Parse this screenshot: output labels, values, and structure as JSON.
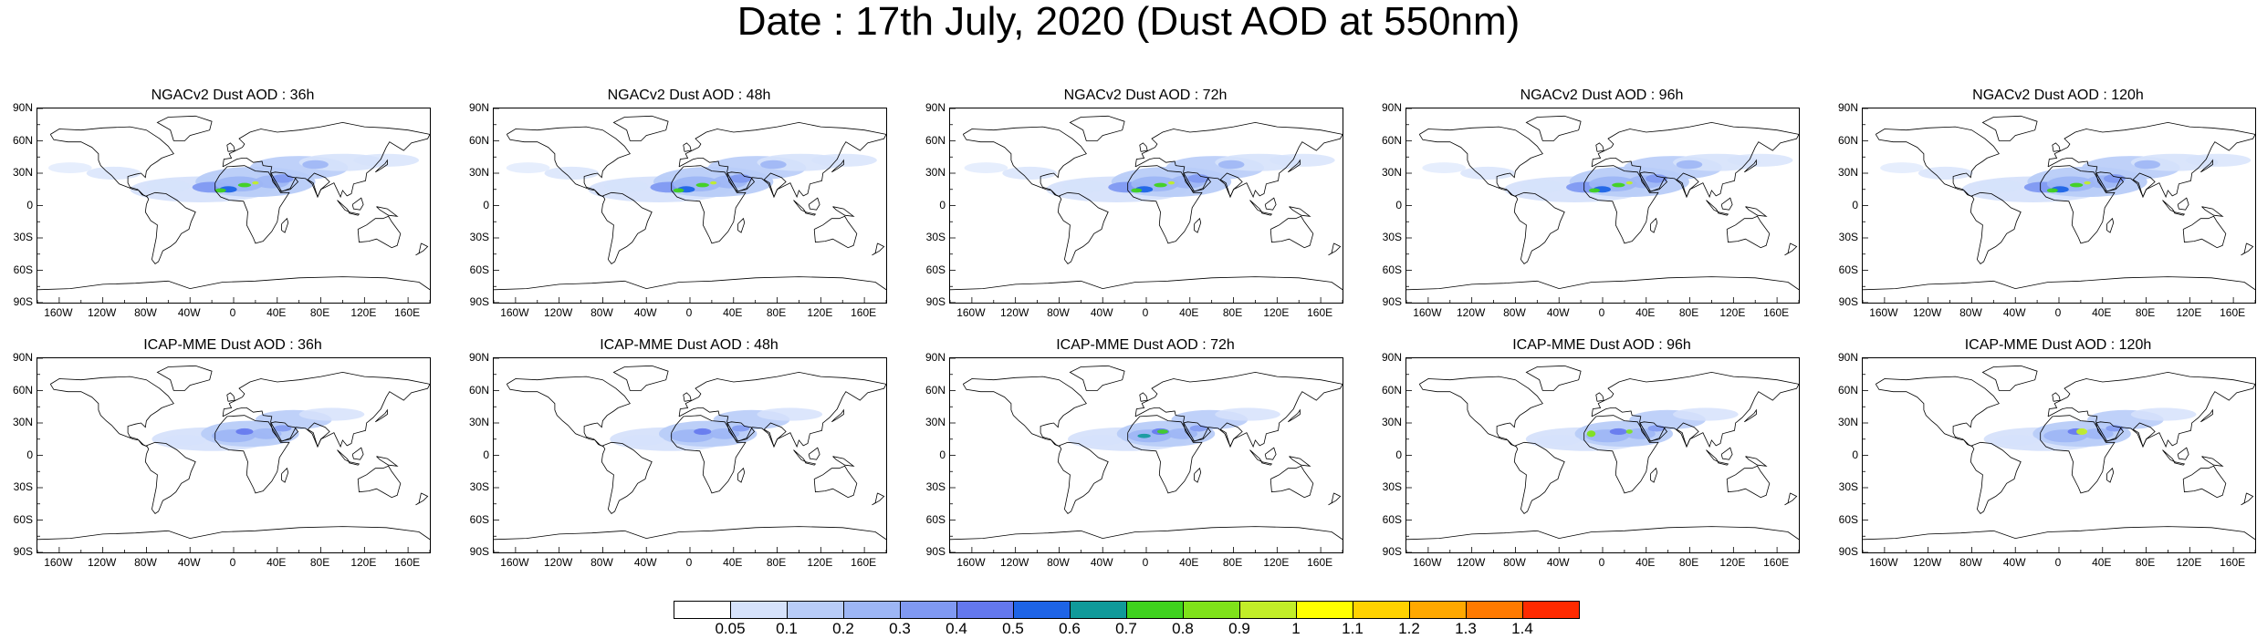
{
  "title": "Date : 17th July, 2020 (Dust AOD at 550nm)",
  "lat_labels": [
    "90N",
    "60N",
    "30N",
    "0",
    "30S",
    "60S",
    "90S"
  ],
  "lon_labels": [
    "160W",
    "120W",
    "80W",
    "40W",
    "0",
    "40E",
    "80E",
    "120E",
    "160E"
  ],
  "panels": [
    {
      "title": "NGACv2 Dust AOD : 36h"
    },
    {
      "title": "NGACv2 Dust AOD : 48h"
    },
    {
      "title": "NGACv2 Dust AOD : 72h"
    },
    {
      "title": "NGACv2 Dust AOD : 96h"
    },
    {
      "title": "NGACv2 Dust AOD : 120h"
    },
    {
      "title": "ICAP-MME Dust AOD : 36h"
    },
    {
      "title": "ICAP-MME Dust AOD : 48h"
    },
    {
      "title": "ICAP-MME Dust AOD : 72h"
    },
    {
      "title": "ICAP-MME Dust AOD : 96h"
    },
    {
      "title": "ICAP-MME Dust AOD : 120h"
    }
  ],
  "colorbar": {
    "labels": [
      "0.05",
      "0.1",
      "0.2",
      "0.3",
      "0.4",
      "0.5",
      "0.6",
      "0.7",
      "0.8",
      "0.9",
      "1",
      "1.1",
      "1.2",
      "1.3",
      "1.4"
    ],
    "colors": [
      "#ffffff",
      "#d6e2fb",
      "#b8ccf8",
      "#9db6f5",
      "#8099f2",
      "#6478ee",
      "#1e64e6",
      "#109a9a",
      "#3fd21e",
      "#7fe21a",
      "#c2ee28",
      "#ffff00",
      "#ffd200",
      "#ffa800",
      "#ff7a00",
      "#ff2a00"
    ]
  }
}
